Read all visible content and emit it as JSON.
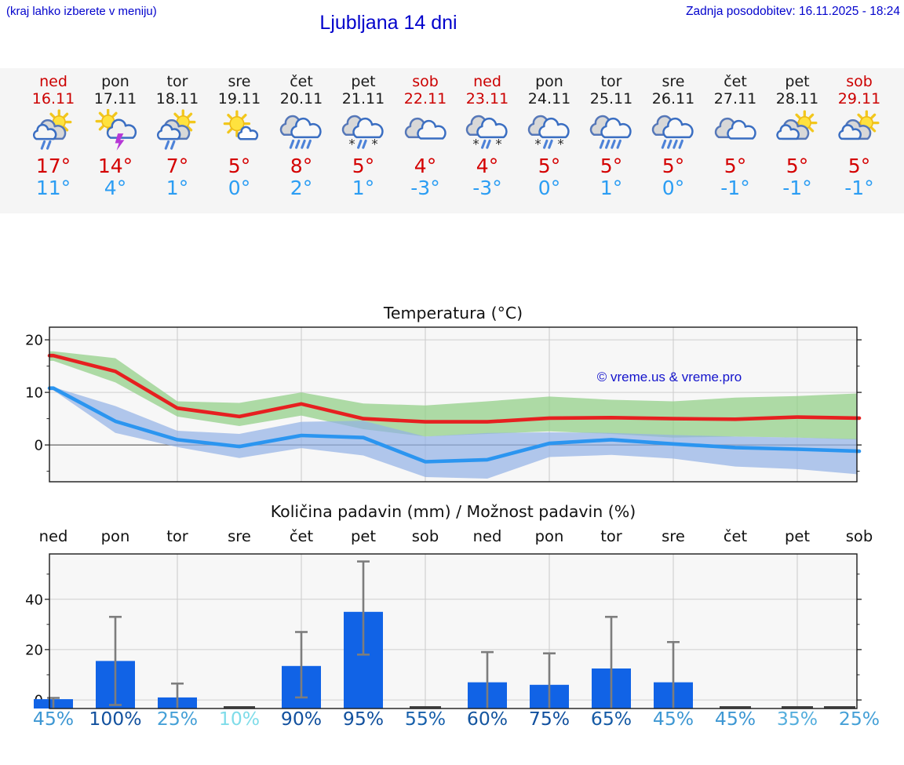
{
  "header": {
    "hint": "(kraj lahko izberete v meniju)",
    "title": "Ljubljana 14 dni",
    "updated": "Zadnja posodobitev: 16.11.2025 - 18:24"
  },
  "colors": {
    "accent_blue": "#0202cc",
    "weekend_red": "#cc0000",
    "weekday_black": "#1a1a1a",
    "temp_max": "#d40000",
    "temp_min": "#2b9df3",
    "strip_bg": "#f5f5f5",
    "plot_bg": "#f7f7f7",
    "bar_blue": "#1163e6",
    "error_gray": "#7d7d7d",
    "line_max": "#e62020",
    "line_min": "#2b95f0",
    "band_max": "#90ce85",
    "band_min": "#92b1e6"
  },
  "days": [
    {
      "name": "ned",
      "date": "16.11",
      "weekend": true,
      "icon": "sun_cloud_rain",
      "tmax": "17°",
      "tmin": "11°",
      "pop": "45%",
      "pop_color": "#3d97d3"
    },
    {
      "name": "pon",
      "date": "17.11",
      "weekend": false,
      "icon": "sun_cloud_storm",
      "tmax": "14°",
      "tmin": "4°",
      "pop": "100%",
      "pop_color": "#11509e"
    },
    {
      "name": "tor",
      "date": "18.11",
      "weekend": false,
      "icon": "sun_cloud_rain",
      "tmax": "7°",
      "tmin": "1°",
      "pop": "25%",
      "pop_color": "#45a0d7"
    },
    {
      "name": "sre",
      "date": "19.11",
      "weekend": false,
      "icon": "sun_cloud",
      "tmax": "5°",
      "tmin": "0°",
      "pop": "10%",
      "pop_color": "#7fdce9"
    },
    {
      "name": "čet",
      "date": "20.11",
      "weekend": false,
      "icon": "cloud_rain_heavy",
      "tmax": "8°",
      "tmin": "2°",
      "pop": "90%",
      "pop_color": "#11509e"
    },
    {
      "name": "pet",
      "date": "21.11",
      "weekend": false,
      "icon": "cloud_sleet",
      "tmax": "5°",
      "tmin": "1°",
      "pop": "95%",
      "pop_color": "#11509e"
    },
    {
      "name": "sob",
      "date": "22.11",
      "weekend": true,
      "icon": "cloudy",
      "tmax": "4°",
      "tmin": "-3°",
      "pop": "55%",
      "pop_color": "#1760ab"
    },
    {
      "name": "ned",
      "date": "23.11",
      "weekend": true,
      "icon": "cloud_sleet",
      "tmax": "4°",
      "tmin": "-3°",
      "pop": "60%",
      "pop_color": "#14559f"
    },
    {
      "name": "pon",
      "date": "24.11",
      "weekend": false,
      "icon": "cloud_sleet",
      "tmax": "5°",
      "tmin": "0°",
      "pop": "75%",
      "pop_color": "#11509e"
    },
    {
      "name": "tor",
      "date": "25.11",
      "weekend": false,
      "icon": "cloud_rain_heavy",
      "tmax": "5°",
      "tmin": "1°",
      "pop": "65%",
      "pop_color": "#155aa5"
    },
    {
      "name": "sre",
      "date": "26.11",
      "weekend": false,
      "icon": "cloud_rain_heavy",
      "tmax": "5°",
      "tmin": "0°",
      "pop": "45%",
      "pop_color": "#3d97d3"
    },
    {
      "name": "čet",
      "date": "27.11",
      "weekend": false,
      "icon": "cloudy",
      "tmax": "5°",
      "tmin": "-1°",
      "pop": "45%",
      "pop_color": "#3d97d3"
    },
    {
      "name": "pet",
      "date": "28.11",
      "weekend": false,
      "icon": "cloud_sun",
      "tmax": "5°",
      "tmin": "-1°",
      "pop": "35%",
      "pop_color": "#54aedd"
    },
    {
      "name": "sob",
      "date": "29.11",
      "weekend": true,
      "icon": "cloud_sun",
      "tmax": "5°",
      "tmin": "-1°",
      "pop": "25%",
      "pop_color": "#45a0d7"
    }
  ],
  "chart_data": [
    {
      "type": "line",
      "title": "Temperatura (°C)",
      "watermark": "© vreme.us & vreme.pro",
      "categories": [
        "16.11",
        "17.11",
        "18.11",
        "19.11",
        "20.11",
        "21.11",
        "22.11",
        "23.11",
        "24.11",
        "25.11",
        "26.11",
        "27.11",
        "28.11",
        "29.11"
      ],
      "yticks": [
        0,
        10,
        20
      ],
      "ylim": [
        -7,
        22.4
      ],
      "grid": true,
      "legend": "none",
      "series": [
        {
          "name": "max temperature",
          "color": "#e62020",
          "values": [
            17,
            14,
            7,
            5.4,
            7.8,
            5,
            4.4,
            4.4,
            5.1,
            5.2,
            5,
            4.9,
            5.3,
            5.1
          ]
        },
        {
          "name": "min temperature",
          "color": "#2b95f0",
          "values": [
            10.8,
            4.5,
            1,
            -0.3,
            1.8,
            1.4,
            -3.2,
            -2.8,
            0.3,
            1,
            0.2,
            -0.5,
            -0.8,
            -1.2
          ]
        }
      ],
      "bands": [
        {
          "name": "max range",
          "color": "#90ce85",
          "hi": [
            17.8,
            16.5,
            8.3,
            8,
            10,
            7.9,
            7.5,
            8.3,
            9.2,
            8.6,
            8.3,
            9,
            9.3,
            9.8
          ],
          "lo": [
            16,
            11.9,
            5.4,
            3.6,
            5.6,
            3,
            1.6,
            2.1,
            2.6,
            2.1,
            1.4,
            1.6,
            1.4,
            1
          ]
        },
        {
          "name": "min range",
          "color": "#92b1e6",
          "hi": [
            11,
            7.4,
            2.7,
            2.1,
            4.4,
            4.6,
            1.6,
            2.3,
            2.4,
            2.3,
            1.9,
            1.6,
            1.4,
            1.1
          ],
          "lo": [
            10.4,
            2.3,
            -0.4,
            -2.5,
            -0.6,
            -2,
            -6.1,
            -6.4,
            -2.3,
            -1.9,
            -2.6,
            -4.1,
            -4.6,
            -5.6
          ]
        }
      ]
    },
    {
      "type": "bar",
      "title": "Količina padavin (mm) / Možnost padavin (%)",
      "categories": [
        "ned",
        "pon",
        "tor",
        "sre",
        "čet",
        "pet",
        "sob",
        "ned",
        "pon",
        "tor",
        "sre",
        "čet",
        "pet",
        "sob"
      ],
      "yticks": [
        0,
        20,
        40
      ],
      "ylim": [
        -3.4,
        58
      ],
      "grid": true,
      "values": [
        0.3,
        15.5,
        1,
        0,
        13.5,
        35,
        0,
        7,
        6,
        12.5,
        7,
        0,
        0,
        0
      ],
      "err_hi": [
        0.8,
        33,
        6.5,
        0,
        27,
        55,
        0,
        19,
        18.5,
        33,
        23,
        0,
        0,
        0
      ],
      "err_lo": [
        null,
        -2,
        null,
        null,
        1,
        18,
        null,
        null,
        null,
        null,
        null,
        null,
        null,
        null
      ],
      "pop_percent": [
        45,
        100,
        25,
        10,
        90,
        95,
        55,
        60,
        75,
        65,
        45,
        45,
        35,
        25
      ]
    }
  ]
}
